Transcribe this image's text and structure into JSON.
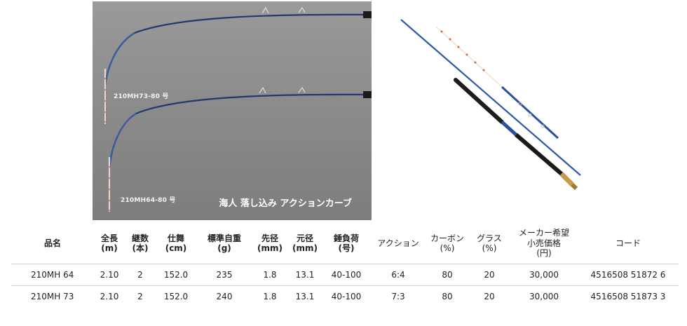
{
  "figure": {
    "curve_labels": [
      "210MH73-80 号",
      "210MH64-80 号"
    ],
    "caption": "海人 落し込み アクションカーブ"
  },
  "table": {
    "headers": [
      {
        "line1": "品名",
        "line2": "",
        "line3": ""
      },
      {
        "line1": "全長",
        "line2": "(m)",
        "line3": ""
      },
      {
        "line1": "継数",
        "line2": "(本)",
        "line3": ""
      },
      {
        "line1": "仕舞",
        "line2": "(cm)",
        "line3": ""
      },
      {
        "line1": "標準自重",
        "line2": "(g)",
        "line3": ""
      },
      {
        "line1": "先径",
        "line2": "(mm)",
        "line3": ""
      },
      {
        "line1": "元径",
        "line2": "(mm)",
        "line3": ""
      },
      {
        "line1": "錘負荷",
        "line2": "(号)",
        "line3": ""
      },
      {
        "line1": "アクション",
        "line2": "",
        "line3": ""
      },
      {
        "line1": "カーボン",
        "line2": "(%)",
        "line3": ""
      },
      {
        "line1": "グラス",
        "line2": "(%)",
        "line3": ""
      },
      {
        "line1": "メーカー希望",
        "line2": "小売価格",
        "line3": "(円)"
      },
      {
        "line1": "コード",
        "line2": "",
        "line3": ""
      }
    ],
    "rows": [
      [
        "210MH  64",
        "2.10",
        "2",
        "152.0",
        "235",
        "1.8",
        "13.1",
        "40-100",
        "6:4",
        "80",
        "20",
        "30,000",
        "4516508 51872 6"
      ],
      [
        "210MH  73",
        "2.10",
        "2",
        "152.0",
        "240",
        "1.8",
        "13.1",
        "40-100",
        "7:3",
        "80",
        "20",
        "30,000",
        "4516508 51873 3"
      ]
    ]
  }
}
